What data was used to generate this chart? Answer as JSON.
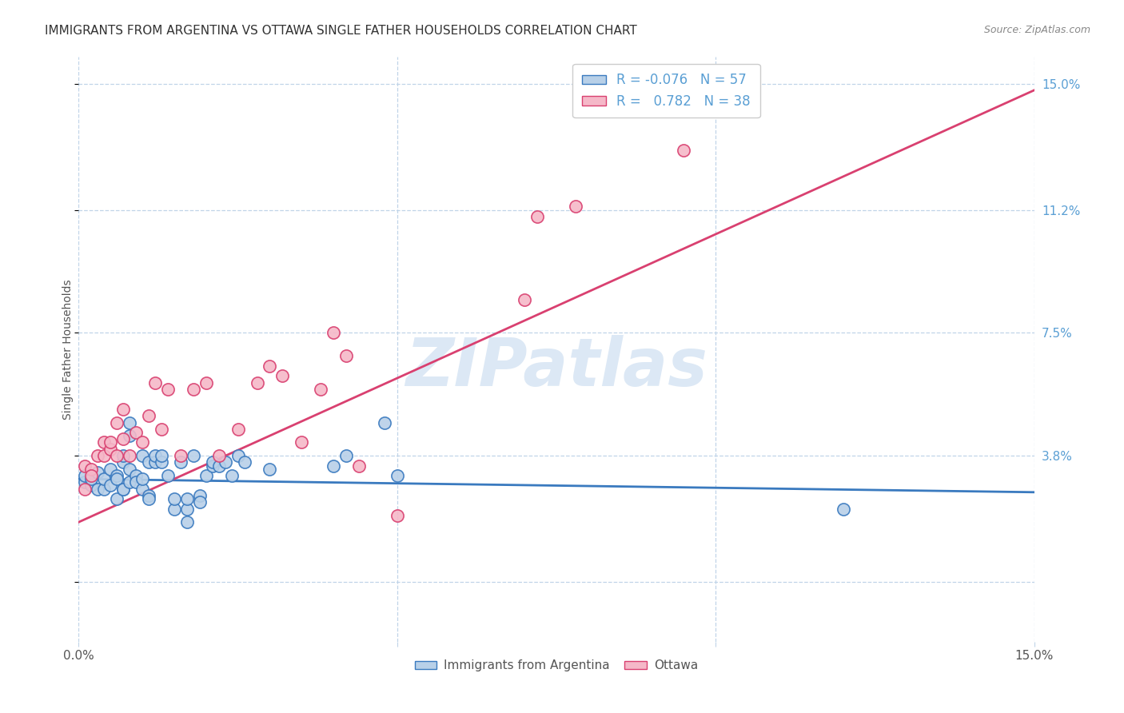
{
  "title": "IMMIGRANTS FROM ARGENTINA VS OTTAWA SINGLE FATHER HOUSEHOLDS CORRELATION CHART",
  "source": "Source: ZipAtlas.com",
  "ylabel": "Single Father Households",
  "yticks": [
    0.0,
    0.038,
    0.075,
    0.112,
    0.15
  ],
  "ytick_labels": [
    "",
    "3.8%",
    "7.5%",
    "11.2%",
    "15.0%"
  ],
  "xlim": [
    0.0,
    0.15
  ],
  "ylim": [
    -0.018,
    0.158
  ],
  "legend_R1": "-0.076",
  "legend_N1": "57",
  "legend_R2": "0.782",
  "legend_N2": "38",
  "color_blue": "#b8d0e8",
  "color_pink": "#f5b8c8",
  "line_color_blue": "#3a7abf",
  "line_color_pink": "#d94070",
  "tick_label_color": "#5a9fd4",
  "watermark": "ZIPatlas",
  "watermark_color": "#dce8f5",
  "bg_color": "#ffffff",
  "grid_color": "#c0d4e8",
  "title_color": "#333333",
  "source_color": "#888888",
  "blue_scatter": [
    [
      0.001,
      0.03
    ],
    [
      0.001,
      0.032
    ],
    [
      0.002,
      0.029
    ],
    [
      0.002,
      0.031
    ],
    [
      0.003,
      0.028
    ],
    [
      0.003,
      0.033
    ],
    [
      0.004,
      0.028
    ],
    [
      0.004,
      0.031
    ],
    [
      0.005,
      0.029
    ],
    [
      0.005,
      0.034
    ],
    [
      0.006,
      0.025
    ],
    [
      0.006,
      0.032
    ],
    [
      0.006,
      0.031
    ],
    [
      0.007,
      0.028
    ],
    [
      0.007,
      0.028
    ],
    [
      0.007,
      0.036
    ],
    [
      0.007,
      0.038
    ],
    [
      0.008,
      0.034
    ],
    [
      0.008,
      0.03
    ],
    [
      0.008,
      0.044
    ],
    [
      0.008,
      0.048
    ],
    [
      0.009,
      0.032
    ],
    [
      0.009,
      0.03
    ],
    [
      0.01,
      0.038
    ],
    [
      0.01,
      0.028
    ],
    [
      0.01,
      0.031
    ],
    [
      0.011,
      0.026
    ],
    [
      0.011,
      0.036
    ],
    [
      0.011,
      0.025
    ],
    [
      0.012,
      0.036
    ],
    [
      0.012,
      0.038
    ],
    [
      0.013,
      0.036
    ],
    [
      0.013,
      0.038
    ],
    [
      0.014,
      0.032
    ],
    [
      0.015,
      0.022
    ],
    [
      0.015,
      0.025
    ],
    [
      0.016,
      0.036
    ],
    [
      0.017,
      0.022
    ],
    [
      0.017,
      0.018
    ],
    [
      0.017,
      0.025
    ],
    [
      0.018,
      0.038
    ],
    [
      0.019,
      0.026
    ],
    [
      0.019,
      0.024
    ],
    [
      0.02,
      0.032
    ],
    [
      0.021,
      0.035
    ],
    [
      0.021,
      0.036
    ],
    [
      0.022,
      0.035
    ],
    [
      0.023,
      0.036
    ],
    [
      0.024,
      0.032
    ],
    [
      0.025,
      0.038
    ],
    [
      0.026,
      0.036
    ],
    [
      0.03,
      0.034
    ],
    [
      0.04,
      0.035
    ],
    [
      0.042,
      0.038
    ],
    [
      0.048,
      0.048
    ],
    [
      0.05,
      0.032
    ],
    [
      0.12,
      0.022
    ]
  ],
  "pink_scatter": [
    [
      0.001,
      0.028
    ],
    [
      0.001,
      0.035
    ],
    [
      0.002,
      0.034
    ],
    [
      0.002,
      0.032
    ],
    [
      0.003,
      0.038
    ],
    [
      0.004,
      0.042
    ],
    [
      0.004,
      0.038
    ],
    [
      0.005,
      0.04
    ],
    [
      0.005,
      0.042
    ],
    [
      0.006,
      0.038
    ],
    [
      0.006,
      0.048
    ],
    [
      0.007,
      0.043
    ],
    [
      0.007,
      0.052
    ],
    [
      0.008,
      0.038
    ],
    [
      0.009,
      0.045
    ],
    [
      0.01,
      0.042
    ],
    [
      0.011,
      0.05
    ],
    [
      0.012,
      0.06
    ],
    [
      0.013,
      0.046
    ],
    [
      0.014,
      0.058
    ],
    [
      0.016,
      0.038
    ],
    [
      0.018,
      0.058
    ],
    [
      0.02,
      0.06
    ],
    [
      0.022,
      0.038
    ],
    [
      0.025,
      0.046
    ],
    [
      0.028,
      0.06
    ],
    [
      0.03,
      0.065
    ],
    [
      0.032,
      0.062
    ],
    [
      0.035,
      0.042
    ],
    [
      0.038,
      0.058
    ],
    [
      0.04,
      0.075
    ],
    [
      0.042,
      0.068
    ],
    [
      0.044,
      0.035
    ],
    [
      0.05,
      0.02
    ],
    [
      0.07,
      0.085
    ],
    [
      0.072,
      0.11
    ],
    [
      0.078,
      0.113
    ],
    [
      0.095,
      0.13
    ]
  ],
  "blue_line": [
    0.0,
    0.15,
    0.031,
    0.027
  ],
  "pink_line": [
    0.0,
    0.15,
    0.018,
    0.148
  ]
}
